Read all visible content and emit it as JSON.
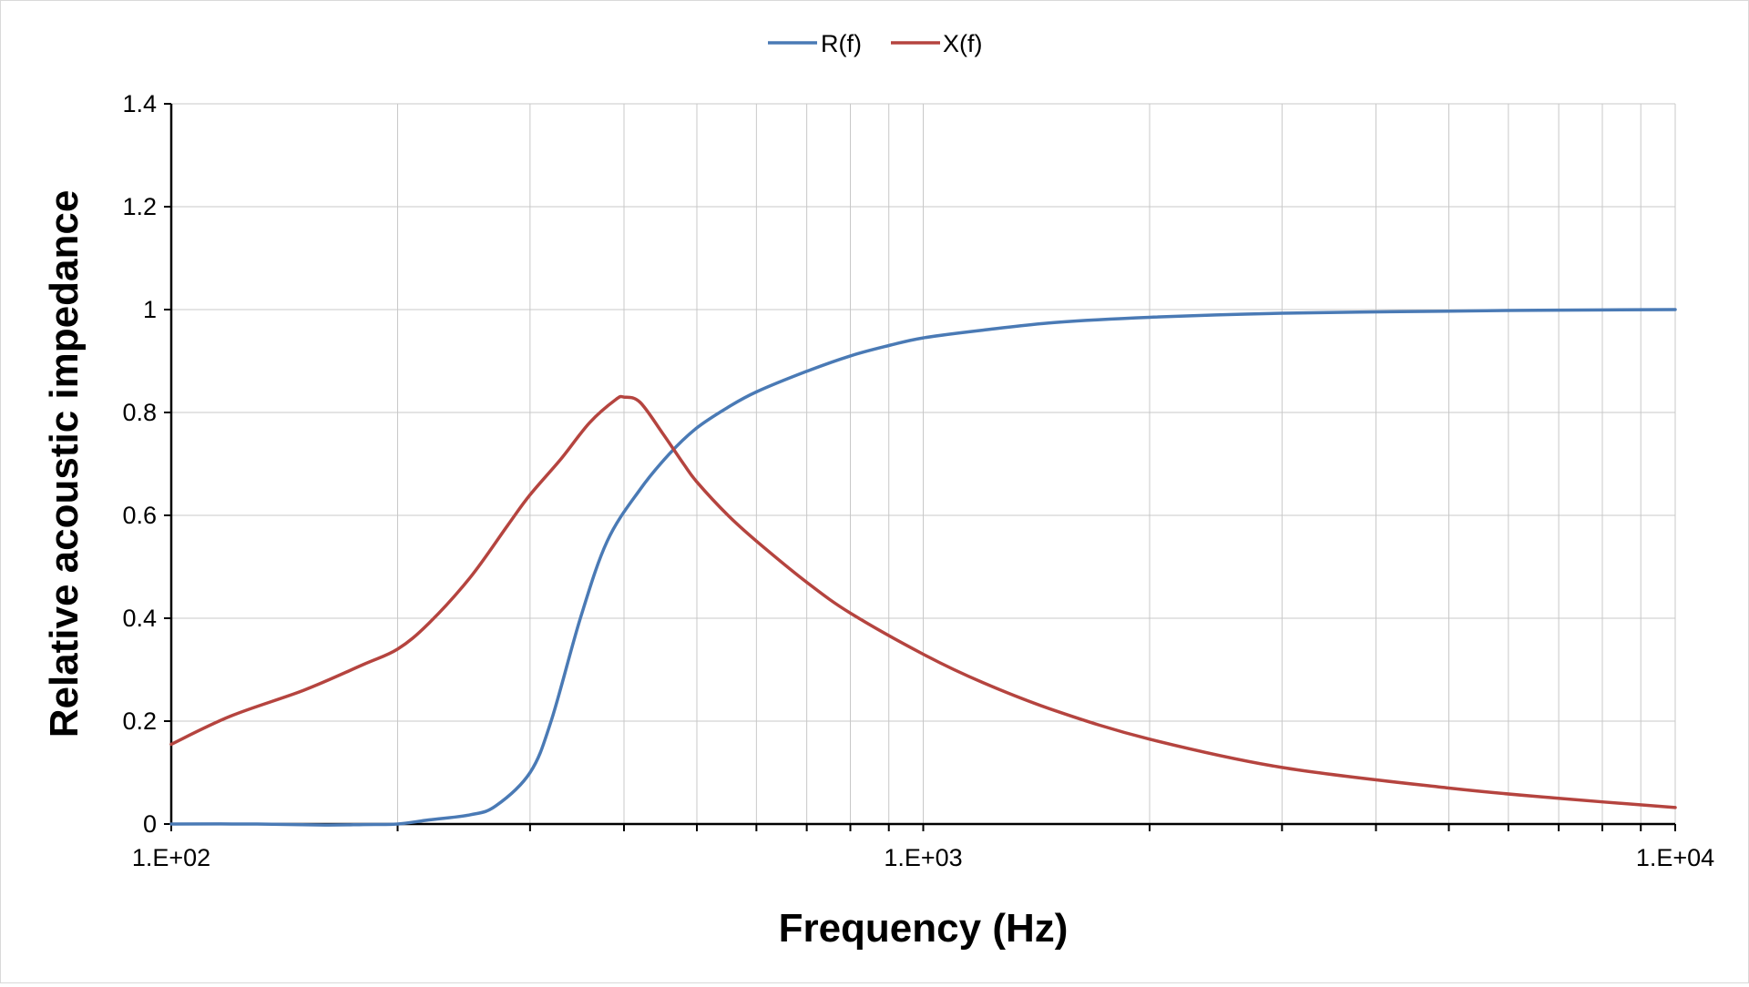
{
  "chart_data": {
    "type": "line",
    "title": "",
    "xlabel": "Frequency (Hz)",
    "ylabel": "Relative acoustic impedance",
    "x_scale": "log",
    "xlim": [
      100,
      10000
    ],
    "ylim": [
      0,
      1.4
    ],
    "grid": true,
    "legend_position": "top-center",
    "x_ticks": [
      100,
      1000,
      10000
    ],
    "x_tick_labels": [
      "1.E+02",
      "1.E+03",
      "1.E+04"
    ],
    "y_ticks": [
      0,
      0.2,
      0.4,
      0.6,
      0.8,
      1,
      1.2,
      1.4
    ],
    "y_tick_labels": [
      "0",
      "0.2",
      "0.4",
      "0.6",
      "0.8",
      "1",
      "1.2",
      "1.4"
    ],
    "series": [
      {
        "name": "R(f)",
        "color": "#4a7ab5",
        "points": [
          [
            100,
            0.0
          ],
          [
            130,
            0.0
          ],
          [
            160,
            -0.002
          ],
          [
            180,
            -0.001
          ],
          [
            200,
            0.0
          ],
          [
            220,
            0.008
          ],
          [
            250,
            0.018
          ],
          [
            270,
            0.035
          ],
          [
            300,
            0.1
          ],
          [
            320,
            0.2
          ],
          [
            350,
            0.4
          ],
          [
            380,
            0.55
          ],
          [
            420,
            0.65
          ],
          [
            460,
            0.72
          ],
          [
            500,
            0.77
          ],
          [
            550,
            0.81
          ],
          [
            600,
            0.84
          ],
          [
            700,
            0.88
          ],
          [
            800,
            0.91
          ],
          [
            900,
            0.93
          ],
          [
            1000,
            0.945
          ],
          [
            1200,
            0.96
          ],
          [
            1500,
            0.975
          ],
          [
            2000,
            0.985
          ],
          [
            3000,
            0.993
          ],
          [
            5000,
            0.997
          ],
          [
            7000,
            0.999
          ],
          [
            10000,
            1.0
          ]
        ]
      },
      {
        "name": "X(f)",
        "color": "#b5443f",
        "points": [
          [
            100,
            0.155
          ],
          [
            120,
            0.21
          ],
          [
            150,
            0.26
          ],
          [
            180,
            0.31
          ],
          [
            200,
            0.34
          ],
          [
            220,
            0.39
          ],
          [
            250,
            0.48
          ],
          [
            280,
            0.58
          ],
          [
            300,
            0.64
          ],
          [
            330,
            0.71
          ],
          [
            360,
            0.78
          ],
          [
            390,
            0.825
          ],
          [
            400,
            0.83
          ],
          [
            420,
            0.82
          ],
          [
            450,
            0.76
          ],
          [
            480,
            0.7
          ],
          [
            500,
            0.665
          ],
          [
            550,
            0.6
          ],
          [
            600,
            0.55
          ],
          [
            700,
            0.47
          ],
          [
            800,
            0.41
          ],
          [
            1000,
            0.33
          ],
          [
            1200,
            0.275
          ],
          [
            1500,
            0.22
          ],
          [
            2000,
            0.165
          ],
          [
            3000,
            0.11
          ],
          [
            5000,
            0.07
          ],
          [
            7000,
            0.05
          ],
          [
            10000,
            0.032
          ]
        ]
      }
    ]
  }
}
